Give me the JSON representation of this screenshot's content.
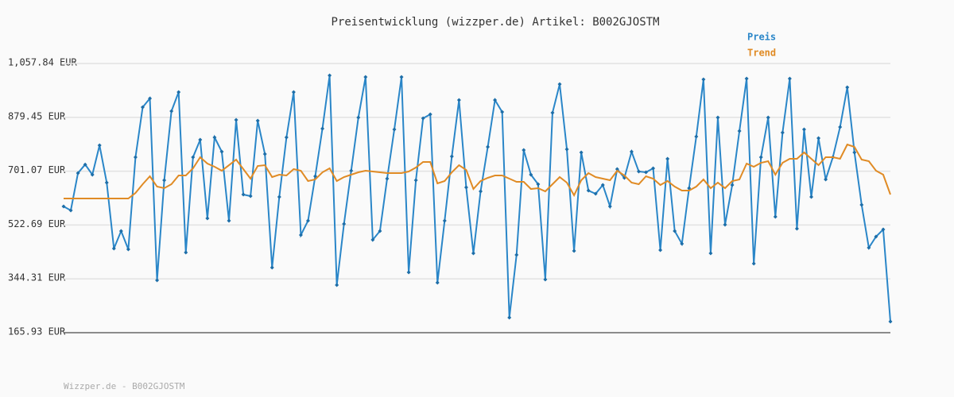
{
  "chart_data": {
    "type": "line",
    "title": "Preisentwicklung (wizzper.de) Artikel: B002GJOSTM",
    "footer": "Wizzper.de - B002GJOSTM",
    "ylim": [
      165.93,
      1057.84
    ],
    "yticks": [
      {
        "value": 165.93,
        "label": "165.93 EUR"
      },
      {
        "value": 344.31,
        "label": "344.31 EUR"
      },
      {
        "value": 522.69,
        "label": "522.69 EUR"
      },
      {
        "value": 701.07,
        "label": "701.07 EUR"
      },
      {
        "value": 879.45,
        "label": "879.45 EUR"
      },
      {
        "value": 1057.84,
        "label": "1,057.84 EUR"
      }
    ],
    "grid": true,
    "series": [
      {
        "name": "Preis",
        "color": "#2a86c8",
        "values": [
          584.3,
          571.1,
          694.8,
          723.2,
          689.5,
          786.8,
          663.2,
          444.8,
          502.7,
          442.2,
          747.4,
          913.1,
          942.1,
          339.6,
          671.1,
          900.0,
          963.1,
          431.7,
          747.4,
          805.3,
          544.8,
          813.1,
          765.8,
          536.9,
          871.0,
          623.7,
          618.5,
          868.4,
          757.9,
          381.7,
          615.8,
          813.1,
          963.1,
          489.5,
          536.9,
          684.2,
          842.1,
          1018.4,
          323.8,
          526.4,
          702.6,
          878.9,
          1013.1,
          473.8,
          502.7,
          676.3,
          839.5,
          1013.1,
          365.9,
          671.1,
          876.3,
          889.4,
          331.7,
          536.9,
          750.0,
          936.8,
          647.4,
          429.0,
          634.2,
          781.6,
          936.8,
          897.3,
          215.9,
          423.8,
          771.1,
          689.5,
          657.9,
          342.2,
          894.7,
          989.4,
          773.7,
          436.9,
          763.2,
          636.9,
          626.4,
          655.3,
          584.3,
          707.9,
          679.0,
          765.8,
          700.0,
          697.4,
          710.5,
          439.5,
          742.1,
          502.7,
          460.6,
          644.8,
          815.8,
          1005.2,
          429.0,
          878.9,
          523.7,
          655.3,
          834.2,
          1007.8,
          394.8,
          747.4,
          878.9,
          550.0,
          828.9,
          1007.8,
          510.6,
          839.5,
          615.8,
          810.5,
          673.7,
          747.4,
          847.4,
          978.9,
          763.2,
          589.5,
          447.4,
          484.3,
          507.9,
          202.8
        ]
      },
      {
        "name": "Trend",
        "color": "#e08b25",
        "values": [
          610.6,
          610.6,
          610.6,
          610.6,
          610.6,
          610.6,
          610.6,
          610.6,
          610.6,
          610.6,
          629.0,
          657.9,
          684.2,
          650.0,
          644.8,
          657.9,
          686.9,
          686.9,
          710.5,
          747.4,
          726.3,
          715.8,
          702.6,
          721.0,
          739.5,
          707.9,
          676.3,
          718.4,
          721.0,
          681.6,
          689.5,
          686.9,
          707.9,
          702.6,
          668.5,
          673.7,
          697.4,
          710.5,
          668.5,
          681.6,
          689.5,
          697.4,
          702.6,
          700.0,
          697.4,
          694.8,
          694.8,
          694.8,
          700.0,
          713.2,
          731.6,
          731.6,
          660.6,
          668.5,
          697.4,
          721.0,
          705.3,
          642.1,
          668.5,
          679.0,
          686.9,
          686.9,
          676.3,
          665.8,
          665.8,
          642.1,
          644.8,
          634.2,
          657.9,
          681.6,
          663.2,
          621.1,
          671.1,
          694.8,
          681.6,
          676.3,
          671.1,
          702.6,
          686.9,
          663.2,
          657.9,
          684.2,
          676.3,
          655.3,
          668.5,
          650.0,
          636.9,
          636.9,
          650.0,
          673.7,
          644.8,
          663.2,
          644.8,
          668.5,
          673.7,
          726.3,
          715.8,
          728.9,
          734.2,
          689.5,
          728.9,
          742.1,
          742.1,
          763.2,
          742.1,
          721.0,
          747.4,
          747.4,
          742.1,
          789.5,
          781.6,
          739.5,
          734.2,
          702.6,
          689.5,
          623.7
        ]
      }
    ]
  }
}
